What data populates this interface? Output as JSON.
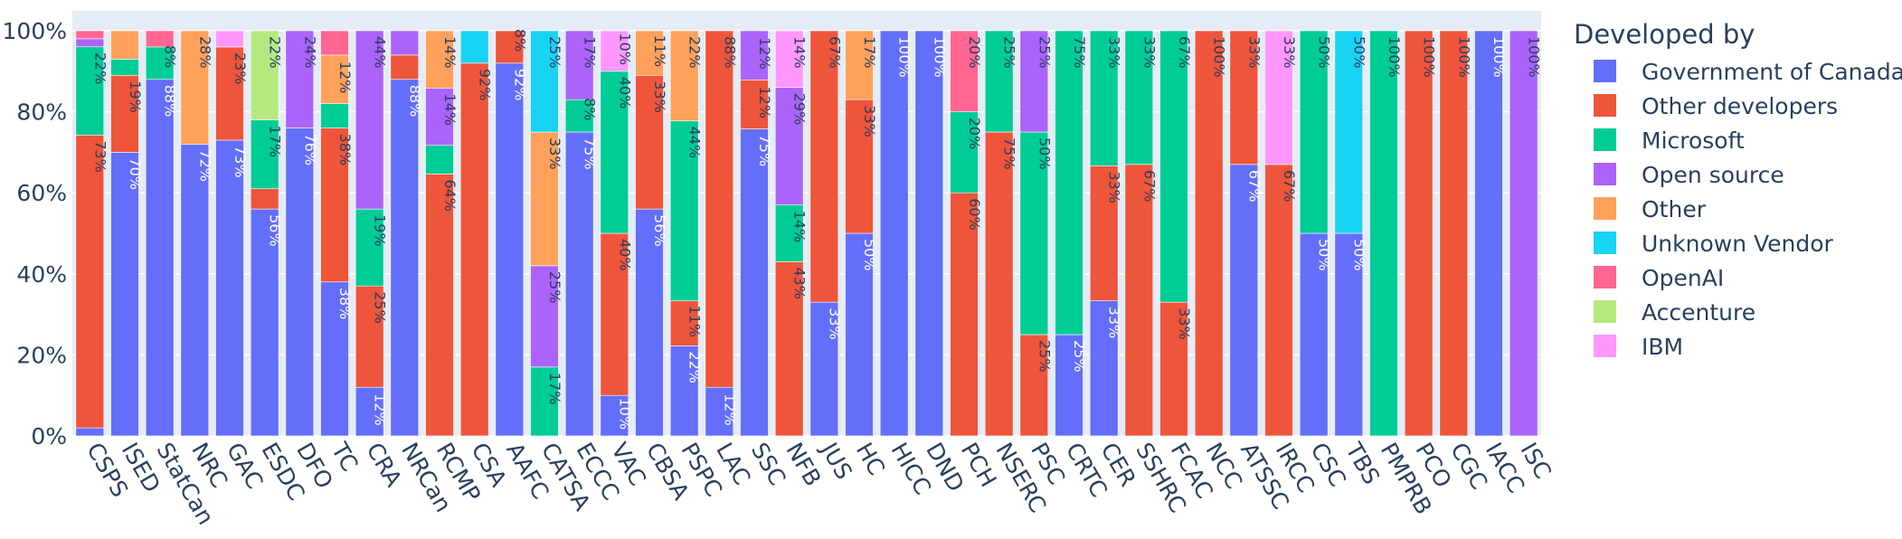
{
  "chart_data": {
    "type": "bar",
    "stacked": true,
    "normalized": true,
    "categories": [
      "CSPS",
      "ISED",
      "StatCan",
      "NRC",
      "GAC",
      "ESDC",
      "DFO",
      "TC",
      "CRA",
      "NRCan",
      "RCMP",
      "CSA",
      "AAFC",
      "CATSA",
      "ECCC",
      "VAC",
      "CBSA",
      "PSPC",
      "LAC",
      "SSC",
      "NFB",
      "JUS",
      "HC",
      "HICC",
      "DND",
      "PCH",
      "NSERC",
      "PSC",
      "CRTC",
      "CER",
      "SSHRC",
      "FCAC",
      "NCC",
      "ATSSC",
      "IRCC",
      "CSC",
      "TBS",
      "PMPRB",
      "PCO",
      "CGC",
      "IACC",
      "ISC"
    ],
    "legend_title": "Developed by",
    "legend_position": "right",
    "ylim": [
      0,
      100
    ],
    "y_ticks": [
      "0%",
      "20%",
      "40%",
      "60%",
      "80%",
      "100%"
    ],
    "grid": true,
    "series": [
      {
        "name": "Government of Canada",
        "color": "#636EFA",
        "values": [
          2,
          70,
          88,
          72,
          73,
          56,
          76,
          38,
          12,
          88,
          0,
          0,
          92,
          0,
          75,
          10,
          56,
          22,
          12,
          75,
          0,
          33,
          50,
          100,
          100,
          0,
          0,
          0,
          25,
          33,
          0,
          0,
          0,
          67,
          0,
          50,
          50,
          0,
          0,
          0,
          100,
          0
        ],
        "labels": [
          "",
          "70%",
          "88%",
          "72%",
          "73%",
          "56%",
          "76%",
          "38%",
          "12%",
          "88%",
          "",
          "",
          "92%",
          "",
          "75%",
          "10%",
          "56%",
          "22%",
          "12%",
          "75%",
          "",
          "33%",
          "50%",
          "100%",
          "100%",
          "",
          "",
          "",
          "25%",
          "33%",
          "",
          "",
          "",
          "67%",
          "",
          "50%",
          "50%",
          "",
          "",
          "",
          "100%",
          ""
        ]
      },
      {
        "name": "Other developers",
        "color": "#EF553B",
        "values": [
          73,
          19,
          0,
          0,
          23,
          5,
          0,
          38,
          25,
          6,
          64,
          92,
          8,
          0,
          0,
          40,
          33,
          11,
          88,
          12,
          43,
          67,
          33,
          0,
          0,
          60,
          75,
          25,
          0,
          33,
          67,
          33,
          100,
          33,
          67,
          0,
          0,
          0,
          100,
          100,
          0,
          0
        ],
        "labels": [
          "73%",
          "19%",
          "",
          "",
          "23%",
          "",
          "",
          "38%",
          "25%",
          "",
          "64%",
          "92%",
          "8%",
          "",
          "",
          "40%",
          "33%",
          "11%",
          "88%",
          "12%",
          "43%",
          "67%",
          "33%",
          "",
          "",
          "60%",
          "75%",
          "25%",
          "",
          "33%",
          "67%",
          "33%",
          "100%",
          "33%",
          "67%",
          "",
          "",
          "",
          "100%",
          "100%",
          "",
          ""
        ]
      },
      {
        "name": "Microsoft",
        "color": "#00CC96",
        "values": [
          22,
          4,
          8,
          0,
          0,
          17,
          0,
          6,
          19,
          0,
          7,
          0,
          0,
          17,
          8,
          40,
          0,
          44,
          0,
          0,
          14,
          0,
          0,
          0,
          0,
          20,
          25,
          50,
          75,
          33,
          33,
          67,
          0,
          0,
          0,
          50,
          0,
          100,
          0,
          0,
          0,
          0
        ],
        "labels": [
          "22%",
          "",
          "8%",
          "",
          "",
          "17%",
          "",
          "",
          "19%",
          "",
          "",
          "",
          "",
          "17%",
          "8%",
          "40%",
          "",
          "44%",
          "",
          "",
          "14%",
          "",
          "",
          "",
          "",
          "20%",
          "25%",
          "50%",
          "75%",
          "33%",
          "33%",
          "67%",
          "",
          "",
          "",
          "50%",
          "",
          "100%",
          "",
          "",
          "",
          ""
        ]
      },
      {
        "name": "Open source",
        "color": "#AB63FA",
        "values": [
          2,
          0,
          0,
          0,
          0,
          0,
          24,
          0,
          44,
          6,
          14,
          0,
          0,
          25,
          17,
          0,
          0,
          0,
          0,
          12,
          29,
          0,
          0,
          0,
          0,
          0,
          0,
          25,
          0,
          0,
          0,
          0,
          0,
          0,
          0,
          0,
          0,
          0,
          0,
          0,
          0,
          100
        ],
        "labels": [
          "",
          "",
          "",
          "",
          "",
          "",
          "24%",
          "",
          "44%",
          "",
          "14%",
          "",
          "",
          "25%",
          "17%",
          "",
          "",
          "",
          "",
          "12%",
          "29%",
          "",
          "",
          "",
          "",
          "",
          "",
          "25%",
          "",
          "",
          "",
          "",
          "",
          "",
          "",
          "",
          "",
          "",
          "",
          "",
          "",
          "100%"
        ]
      },
      {
        "name": "Other",
        "color": "#FFA15A",
        "values": [
          0,
          7,
          0,
          28,
          0,
          0,
          0,
          12,
          0,
          0,
          14,
          0,
          0,
          33,
          0,
          0,
          11,
          22,
          0,
          0,
          0,
          0,
          17,
          0,
          0,
          0,
          0,
          0,
          0,
          0,
          0,
          0,
          0,
          0,
          0,
          0,
          0,
          0,
          0,
          0,
          0,
          0
        ],
        "labels": [
          "",
          "",
          "",
          "28%",
          "",
          "",
          "",
          "12%",
          "",
          "",
          "14%",
          "",
          "",
          "33%",
          "",
          "",
          "11%",
          "22%",
          "",
          "",
          "",
          "",
          "17%",
          "",
          "",
          "",
          "",
          "",
          "",
          "",
          "",
          "",
          "",
          "",
          "",
          "",
          "",
          "",
          "",
          "",
          "",
          ""
        ]
      },
      {
        "name": "Unknown Vendor",
        "color": "#19D3F3",
        "values": [
          0,
          0,
          0,
          0,
          0,
          0,
          0,
          0,
          0,
          0,
          0,
          8,
          0,
          25,
          0,
          0,
          0,
          0,
          0,
          0,
          0,
          0,
          0,
          0,
          0,
          0,
          0,
          0,
          0,
          0,
          0,
          0,
          0,
          0,
          0,
          0,
          50,
          0,
          0,
          0,
          0,
          0
        ],
        "labels": [
          "",
          "",
          "",
          "",
          "",
          "",
          "",
          "",
          "",
          "",
          "",
          "",
          "",
          "25%",
          "",
          "",
          "",
          "",
          "",
          "",
          "",
          "",
          "",
          "",
          "",
          "",
          "",
          "",
          "",
          "",
          "",
          "",
          "",
          "",
          "",
          "",
          "50%",
          "",
          "",
          "",
          "",
          ""
        ]
      },
      {
        "name": "OpenAI",
        "color": "#FF6692",
        "values": [
          2,
          0,
          4,
          0,
          0,
          0,
          0,
          6,
          0,
          0,
          0,
          0,
          0,
          0,
          0,
          0,
          0,
          0,
          0,
          0,
          0,
          0,
          0,
          0,
          0,
          20,
          0,
          0,
          0,
          0,
          0,
          0,
          0,
          0,
          0,
          0,
          0,
          0,
          0,
          0,
          0,
          0
        ],
        "labels": [
          "",
          "",
          "",
          "",
          "",
          "",
          "",
          "",
          "",
          "",
          "",
          "",
          "",
          "",
          "",
          "",
          "",
          "",
          "",
          "",
          "",
          "",
          "",
          "",
          "",
          "20%",
          "",
          "",
          "",
          "",
          "",
          "",
          "",
          "",
          "",
          "",
          "",
          "",
          "",
          "",
          "",
          ""
        ]
      },
      {
        "name": "Accenture",
        "color": "#B6E880",
        "values": [
          0,
          0,
          0,
          0,
          0,
          22,
          0,
          0,
          0,
          0,
          0,
          0,
          0,
          0,
          0,
          0,
          0,
          0,
          0,
          0,
          0,
          0,
          0,
          0,
          0,
          0,
          0,
          0,
          0,
          0,
          0,
          0,
          0,
          0,
          0,
          0,
          0,
          0,
          0,
          0,
          0,
          0
        ],
        "labels": [
          "",
          "",
          "",
          "",
          "",
          "22%",
          "",
          "",
          "",
          "",
          "",
          "",
          "",
          "",
          "",
          "",
          "",
          "",
          "",
          "",
          "",
          "",
          "",
          "",
          "",
          "",
          "",
          "",
          "",
          "",
          "",
          "",
          "",
          "",
          "",
          "",
          "",
          "",
          "",
          "",
          "",
          ""
        ]
      },
      {
        "name": "IBM",
        "color": "#FF97FF",
        "values": [
          0,
          0,
          0,
          0,
          4,
          0,
          0,
          0,
          0,
          0,
          0,
          0,
          0,
          0,
          0,
          10,
          0,
          0,
          0,
          0,
          14,
          0,
          0,
          0,
          0,
          0,
          0,
          0,
          0,
          0,
          0,
          0,
          0,
          0,
          33,
          0,
          0,
          0,
          0,
          0,
          0,
          0
        ],
        "labels": [
          "",
          "",
          "",
          "",
          "",
          "",
          "",
          "",
          "",
          "",
          "",
          "",
          "",
          "",
          "",
          "10%",
          "",
          "",
          "",
          "",
          "14%",
          "",
          "",
          "",
          "",
          "",
          "",
          "",
          "",
          "",
          "",
          "",
          "",
          "",
          "33%",
          "",
          "",
          "",
          "",
          "",
          "",
          ""
        ]
      }
    ]
  }
}
